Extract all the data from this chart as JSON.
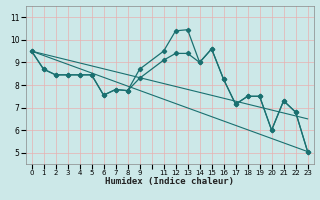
{
  "background_color": "#cceeff",
  "grid_color": "#ddbbbb",
  "line_color": "#1a7070",
  "xlabel": "Humidex (Indice chaleur)",
  "xlim": [
    -0.5,
    23.5
  ],
  "ylim": [
    4.5,
    11.5
  ],
  "yticks": [
    5,
    6,
    7,
    8,
    9,
    10,
    11
  ],
  "xtick_labels": [
    "0",
    "1",
    "2",
    "3",
    "4",
    "5",
    "6",
    "7",
    "8",
    "9",
    "",
    "11",
    "12",
    "13",
    "14",
    "15",
    "16",
    "17",
    "18",
    "19",
    "20",
    "21",
    "22",
    "23"
  ],
  "line_zigzag": {
    "x": [
      0,
      1,
      2,
      3,
      4,
      5,
      6,
      7,
      8,
      9,
      11,
      12,
      13,
      14,
      15,
      16,
      17,
      18,
      19,
      20,
      21,
      22,
      23
    ],
    "y": [
      9.5,
      8.7,
      8.45,
      8.45,
      8.45,
      8.45,
      7.55,
      7.8,
      7.75,
      8.7,
      9.5,
      10.4,
      10.45,
      9.0,
      9.6,
      8.25,
      7.15,
      7.5,
      7.5,
      6.0,
      7.3,
      6.8,
      5.05
    ]
  },
  "line_gentle": {
    "x": [
      0,
      1,
      2,
      3,
      4,
      5,
      6,
      7,
      8,
      9,
      11,
      12,
      13,
      14,
      15,
      16,
      17,
      18,
      19,
      20,
      21,
      22,
      23
    ],
    "y": [
      9.5,
      8.7,
      8.45,
      8.45,
      8.45,
      8.45,
      7.55,
      7.8,
      7.75,
      8.3,
      9.1,
      9.4,
      9.4,
      9.0,
      9.6,
      8.25,
      7.15,
      7.5,
      7.5,
      6.0,
      7.3,
      6.8,
      5.05
    ]
  },
  "line_diag1": {
    "x": [
      0,
      23
    ],
    "y": [
      9.5,
      5.05
    ]
  },
  "line_diag2": {
    "x": [
      0,
      23
    ],
    "y": [
      9.5,
      6.5
    ]
  }
}
